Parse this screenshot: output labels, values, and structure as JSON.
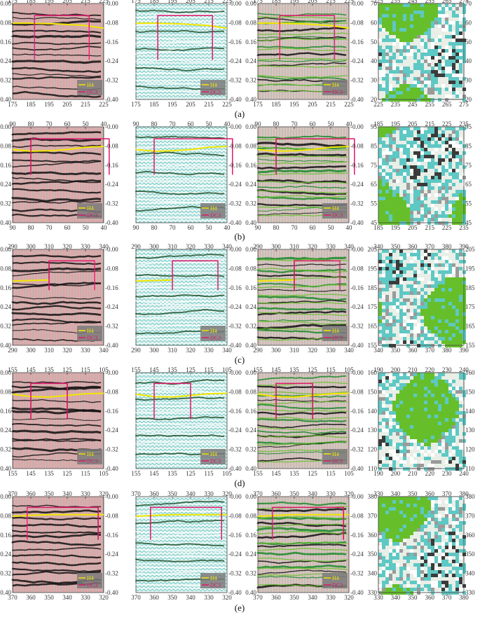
{
  "figure": {
    "rows": [
      {
        "caption": "(a)",
        "seismic_x_ticks": [
          "175",
          "185",
          "195",
          "205",
          "215",
          "225"
        ],
        "seismic_x_range": [
          175,
          225
        ],
        "map_x_ticks": [
          "225",
          "235",
          "245",
          "255",
          "265",
          "275"
        ],
        "map_y_ticks": [
          "70",
          "60",
          "50",
          "40",
          "30",
          "20"
        ],
        "box": {
          "x0": 187,
          "x1": 217,
          "t0": 0.05,
          "t1": 0.235
        },
        "horizon": [
          [
            175,
            0.082
          ],
          [
            185,
            0.082
          ],
          [
            200,
            0.085
          ],
          [
            215,
            0.092
          ],
          [
            225,
            0.103
          ]
        ]
      },
      {
        "caption": "(b)",
        "seismic_x_ticks": [
          "90",
          "80",
          "70",
          "60",
          "50",
          "40"
        ],
        "seismic_x_range": [
          90,
          40
        ],
        "map_x_ticks": [
          "185",
          "195",
          "205",
          "215",
          "225",
          "235"
        ],
        "map_y_ticks": [
          "95",
          "85",
          "75",
          "65",
          "55",
          "45"
        ],
        "box": {
          "x0": 80,
          "x1": 37,
          "t0": 0.05,
          "t1": 0.2
        },
        "horizon": [
          [
            90,
            0.095
          ],
          [
            80,
            0.102
          ],
          [
            70,
            0.1
          ],
          [
            60,
            0.095
          ],
          [
            50,
            0.085
          ],
          [
            40,
            0.082
          ]
        ]
      },
      {
        "caption": "(c)",
        "seismic_x_ticks": [
          "290",
          "300",
          "310",
          "320",
          "330",
          "340"
        ],
        "seismic_x_range": [
          290,
          340
        ],
        "map_x_ticks": [
          "340",
          "350",
          "360",
          "370",
          "380",
          "390"
        ],
        "map_y_ticks": [
          "205",
          "195",
          "185",
          "175",
          "165",
          "155"
        ],
        "box": {
          "x0": 310,
          "x1": 335,
          "t0": 0.048,
          "t1": 0.17
        },
        "horizon": [
          [
            290,
            0.132
          ],
          [
            300,
            0.13
          ],
          [
            310,
            0.128
          ]
        ]
      },
      {
        "caption": "(d)",
        "seismic_x_ticks": [
          "155",
          "145",
          "135",
          "125",
          "115",
          "105"
        ],
        "seismic_x_range": [
          155,
          105
        ],
        "map_x_ticks": [
          "190",
          "200",
          "210",
          "220",
          "230",
          "240"
        ],
        "map_y_ticks": [
          "160",
          "150",
          "140",
          "130",
          "120",
          "110"
        ],
        "box": {
          "x0": 145,
          "x1": 125,
          "t0": 0.045,
          "t1": 0.195
        },
        "horizon": [
          [
            155,
            0.09
          ],
          [
            145,
            0.1
          ],
          [
            135,
            0.102
          ],
          [
            125,
            0.095
          ],
          [
            115,
            0.088
          ],
          [
            105,
            0.086
          ]
        ]
      },
      {
        "caption": "(e)",
        "seismic_x_ticks": [
          "370",
          "360",
          "350",
          "340",
          "330",
          "320"
        ],
        "seismic_x_range": [
          370,
          320
        ],
        "map_x_ticks": [
          "330",
          "340",
          "350",
          "360",
          "370",
          "380"
        ],
        "map_y_ticks": [
          "380",
          "370",
          "360",
          "350",
          "340",
          "330"
        ],
        "box": {
          "x0": 362,
          "x1": 323,
          "t0": 0.045,
          "t1": 0.18
        },
        "horizon": [
          [
            370,
            0.082
          ],
          [
            360,
            0.078
          ],
          [
            350,
            0.075
          ],
          [
            340,
            0.075
          ],
          [
            330,
            0.075
          ],
          [
            320,
            0.075
          ]
        ]
      }
    ],
    "time_ticks": [
      "0.00",
      "0.08",
      "0.16",
      "0.24",
      "0.32",
      "0.40"
    ],
    "legend": {
      "horizon": "H4",
      "box": "DC3"
    },
    "colors": {
      "horizon": "#f2e600",
      "box": "#e0186c",
      "green": "#66bf2a",
      "cyan": "#5ec8c4",
      "wiggle_black": "#111111",
      "wiggle_red": "#cc2020",
      "grey_bg": "#e9eee7"
    }
  },
  "chart_data": [
    {
      "type": "heatmap",
      "panel": "a",
      "x_range": [
        225,
        275
      ],
      "y_range": [
        20,
        70
      ],
      "x_ticks": [
        225,
        235,
        245,
        255,
        265,
        275
      ],
      "y_ticks": [
        20,
        30,
        40,
        50,
        60,
        70
      ],
      "seismic_x_range": [
        175,
        225
      ],
      "time_range": [
        0.0,
        0.4
      ],
      "time_ticks": [
        0.0,
        0.08,
        0.16,
        0.24,
        0.32,
        0.4
      ],
      "legend": [
        "H4",
        "DC3"
      ]
    },
    {
      "type": "heatmap",
      "panel": "b",
      "x_range": [
        185,
        235
      ],
      "y_range": [
        45,
        95
      ],
      "x_ticks": [
        185,
        195,
        205,
        215,
        225,
        235
      ],
      "y_ticks": [
        45,
        55,
        65,
        75,
        85,
        95
      ],
      "seismic_x_range": [
        90,
        40
      ],
      "time_range": [
        0.0,
        0.4
      ],
      "time_ticks": [
        0.0,
        0.08,
        0.16,
        0.24,
        0.32,
        0.4
      ],
      "legend": [
        "H4",
        "DC3"
      ]
    },
    {
      "type": "heatmap",
      "panel": "c",
      "x_range": [
        340,
        390
      ],
      "y_range": [
        155,
        205
      ],
      "x_ticks": [
        340,
        350,
        360,
        370,
        380,
        390
      ],
      "y_ticks": [
        155,
        165,
        175,
        185,
        195,
        205
      ],
      "seismic_x_range": [
        290,
        340
      ],
      "time_range": [
        0.0,
        0.4
      ],
      "time_ticks": [
        0.0,
        0.08,
        0.16,
        0.24,
        0.32,
        0.4
      ],
      "legend": [
        "H4",
        "DC3"
      ]
    },
    {
      "type": "heatmap",
      "panel": "d",
      "x_range": [
        190,
        240
      ],
      "y_range": [
        110,
        160
      ],
      "x_ticks": [
        190,
        200,
        210,
        220,
        230,
        240
      ],
      "y_ticks": [
        110,
        120,
        130,
        140,
        150,
        160
      ],
      "seismic_x_range": [
        155,
        105
      ],
      "time_range": [
        0.0,
        0.4
      ],
      "time_ticks": [
        0.0,
        0.08,
        0.16,
        0.24,
        0.32,
        0.4
      ],
      "legend": [
        "H4",
        "DC3"
      ]
    },
    {
      "type": "heatmap",
      "panel": "e",
      "x_range": [
        330,
        380
      ],
      "y_range": [
        330,
        380
      ],
      "x_ticks": [
        330,
        340,
        350,
        360,
        370,
        380
      ],
      "y_ticks": [
        330,
        340,
        350,
        360,
        370,
        380
      ],
      "seismic_x_range": [
        370,
        320
      ],
      "time_range": [
        0.0,
        0.4
      ],
      "time_ticks": [
        0.0,
        0.08,
        0.16,
        0.24,
        0.32,
        0.4
      ],
      "legend": [
        "H4",
        "DC3"
      ]
    }
  ]
}
